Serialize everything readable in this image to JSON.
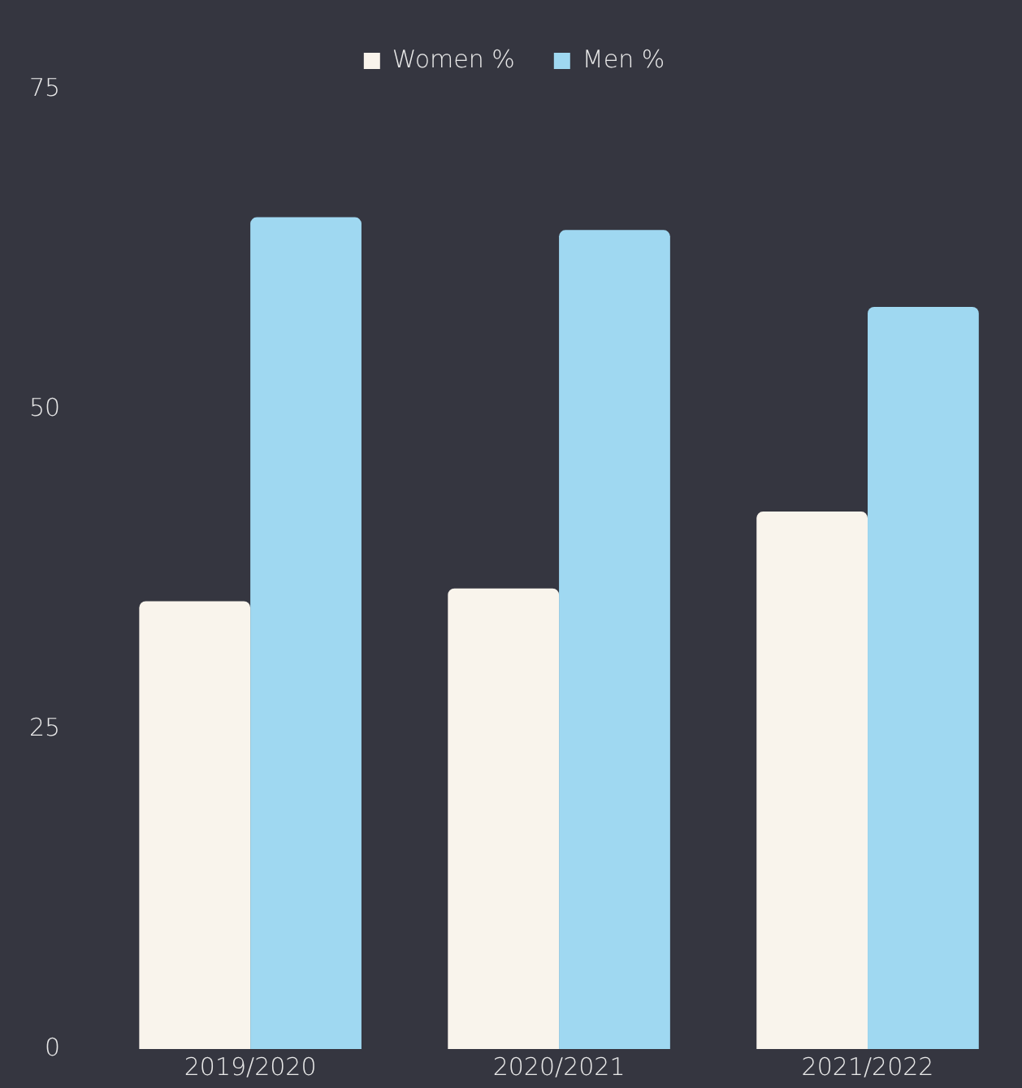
{
  "chart_data": {
    "type": "bar",
    "categories": [
      "2019/2020",
      "2020/2021",
      "2021/2022"
    ],
    "series": [
      {
        "name": "Women %",
        "color": "#f9f4ec",
        "values": [
          35,
          36,
          42
        ]
      },
      {
        "name": "Men %",
        "color": "#9fd8f1",
        "values": [
          65,
          64,
          58
        ]
      }
    ],
    "ylim": [
      0,
      75
    ],
    "yticks": [
      0,
      25,
      50,
      75
    ],
    "grid": false,
    "legend": "top"
  }
}
